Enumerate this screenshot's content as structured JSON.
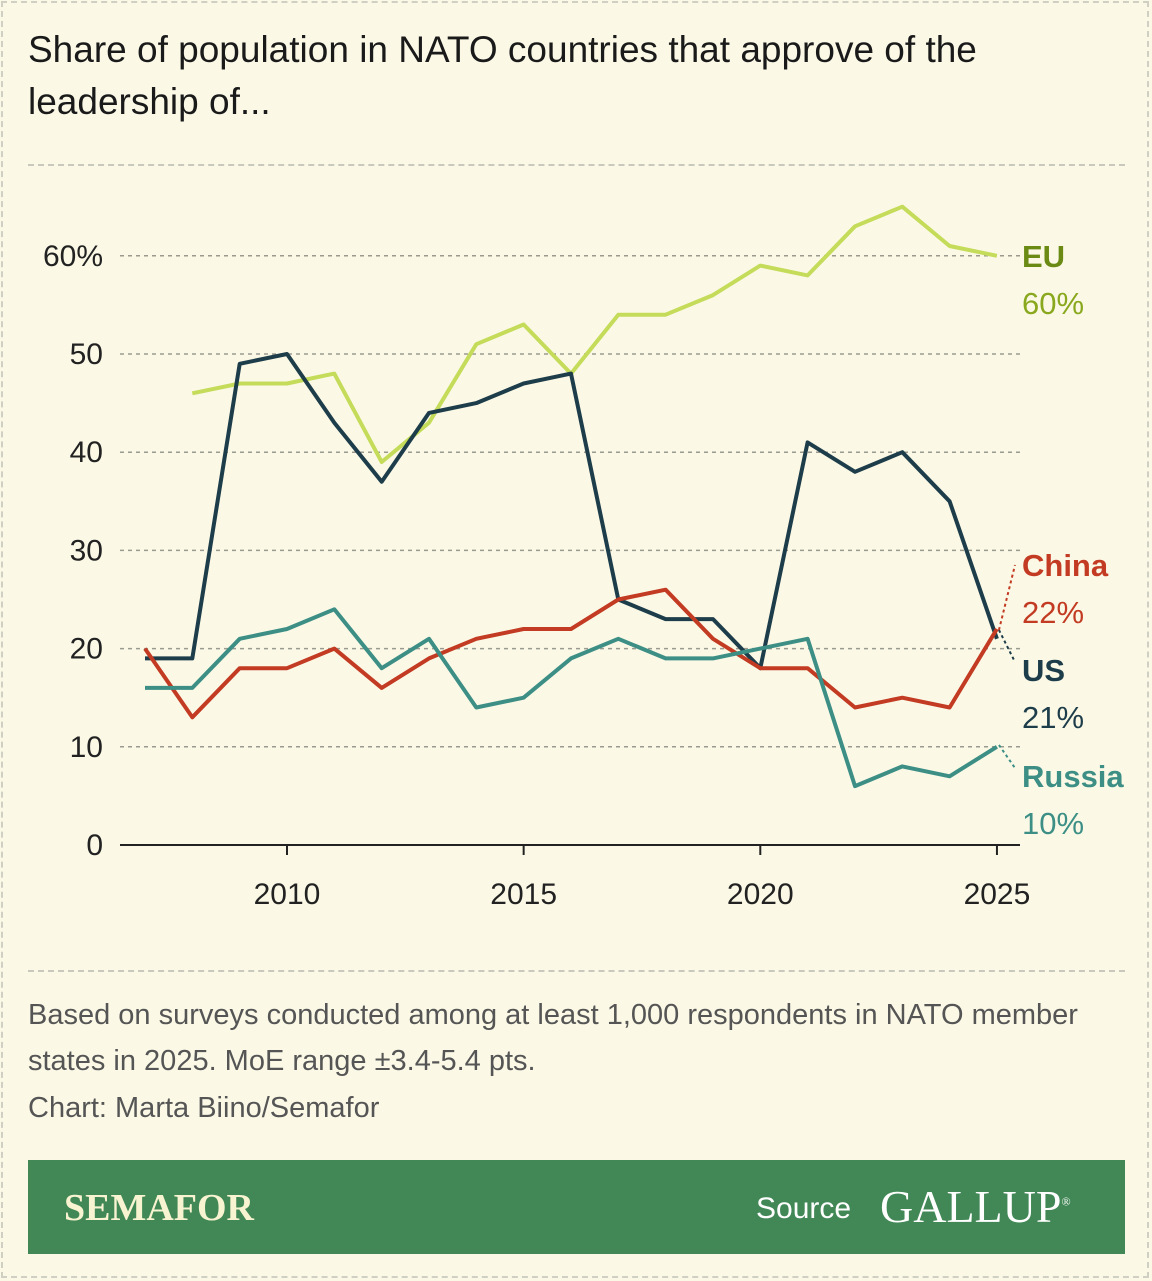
{
  "title": "Share of population in NATO countries that approve of the leadership of...",
  "chart_data": {
    "type": "line",
    "title": "Share of population in NATO countries that approve of the leadership of...",
    "xlabel": "",
    "ylabel": "",
    "xlim": [
      2007,
      2025
    ],
    "ylim": [
      0,
      65
    ],
    "grid": true,
    "x_ticks": [
      2010,
      2015,
      2020,
      2025
    ],
    "x_tick_labels": [
      "2010",
      "2015",
      "2020",
      "2025"
    ],
    "y_ticks": [
      0,
      10,
      20,
      30,
      40,
      50,
      60
    ],
    "y_tick_labels": [
      "0",
      "10",
      "20",
      "30",
      "40",
      "50",
      "60%"
    ],
    "series": [
      {
        "name": "EU",
        "end_label": "60%",
        "color": "#c5db5a",
        "label_color": "#6b8a14",
        "x": [
          2008,
          2009,
          2010,
          2011,
          2012,
          2013,
          2014,
          2015,
          2016,
          2017,
          2018,
          2019,
          2020,
          2021,
          2022,
          2023,
          2024,
          2025
        ],
        "values": [
          46,
          47,
          47,
          48,
          39,
          43,
          51,
          53,
          48,
          54,
          54,
          56,
          59,
          58,
          63,
          65,
          61,
          60
        ]
      },
      {
        "name": "US",
        "end_label": "21%",
        "color": "#1e3d4a",
        "label_color": "#1e3d4a",
        "x": [
          2007,
          2008,
          2009,
          2010,
          2011,
          2012,
          2013,
          2014,
          2015,
          2016,
          2017,
          2018,
          2019,
          2020,
          2021,
          2022,
          2023,
          2024,
          2025
        ],
        "values": [
          19,
          19,
          49,
          50,
          43,
          37,
          44,
          45,
          47,
          48,
          25,
          23,
          23,
          18,
          41,
          38,
          40,
          35,
          21
        ]
      },
      {
        "name": "China",
        "end_label": "22%",
        "color": "#c23b22",
        "label_color": "#c23b22",
        "x": [
          2007,
          2008,
          2009,
          2010,
          2011,
          2012,
          2013,
          2014,
          2015,
          2016,
          2017,
          2018,
          2019,
          2020,
          2021,
          2022,
          2023,
          2024,
          2025
        ],
        "values": [
          20,
          13,
          18,
          18,
          20,
          16,
          19,
          21,
          22,
          22,
          25,
          26,
          21,
          18,
          18,
          14,
          15,
          14,
          22
        ]
      },
      {
        "name": "Russia",
        "end_label": "10%",
        "color": "#3d8f86",
        "label_color": "#3d8f86",
        "x": [
          2007,
          2008,
          2009,
          2010,
          2011,
          2012,
          2013,
          2014,
          2015,
          2016,
          2017,
          2018,
          2019,
          2020,
          2021,
          2022,
          2023,
          2024,
          2025
        ],
        "values": [
          16,
          16,
          21,
          22,
          24,
          18,
          21,
          14,
          15,
          19,
          21,
          19,
          19,
          20,
          21,
          6,
          8,
          7,
          10
        ]
      }
    ]
  },
  "note": "Based on surveys conducted among at least 1,000 respondents in NATO member states in 2025. MoE range ±3.4-5.4 pts.",
  "credit": "Chart: Marta Biino/Semafor",
  "footer": {
    "brand": "SEMAFOR",
    "source_label": "Source",
    "source_logo": "GALLUP",
    "bg_color": "#428856"
  }
}
